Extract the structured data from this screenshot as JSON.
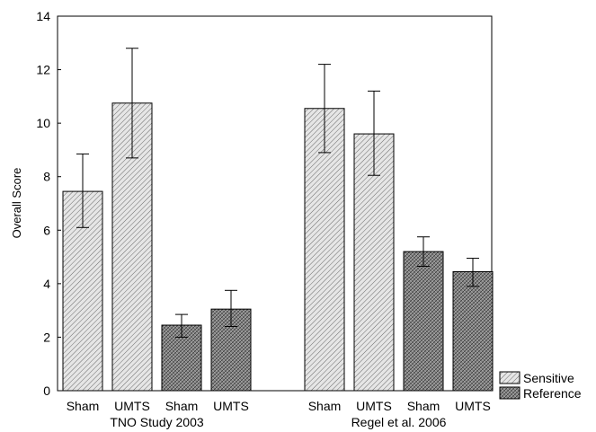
{
  "chart_data": {
    "type": "bar",
    "ylabel": "Overall Score",
    "ylim": [
      0,
      14
    ],
    "yticks": [
      0,
      2,
      4,
      6,
      8,
      10,
      12,
      14
    ],
    "grid": false,
    "legend_position": "bottom-right",
    "groups": [
      {
        "label": "TNO Study 2003",
        "bars": [
          {
            "category": "Sham",
            "series": "Sensitive",
            "value": 7.45,
            "err_low": 6.1,
            "err_high": 8.85
          },
          {
            "category": "UMTS",
            "series": "Sensitive",
            "value": 10.75,
            "err_low": 8.7,
            "err_high": 12.8
          },
          {
            "category": "Sham",
            "series": "Reference",
            "value": 2.45,
            "err_low": 2.0,
            "err_high": 2.85
          },
          {
            "category": "UMTS",
            "series": "Reference",
            "value": 3.05,
            "err_low": 2.4,
            "err_high": 3.75
          }
        ]
      },
      {
        "label": "Regel et al. 2006",
        "bars": [
          {
            "category": "Sham",
            "series": "Sensitive",
            "value": 10.55,
            "err_low": 8.9,
            "err_high": 12.2
          },
          {
            "category": "UMTS",
            "series": "Sensitive",
            "value": 9.6,
            "err_low": 8.05,
            "err_high": 11.2
          },
          {
            "category": "Sham",
            "series": "Reference",
            "value": 5.2,
            "err_low": 4.65,
            "err_high": 5.75
          },
          {
            "category": "UMTS",
            "series": "Reference",
            "value": 4.45,
            "err_low": 3.9,
            "err_high": 4.95
          }
        ]
      }
    ],
    "series": [
      {
        "name": "Sensitive",
        "pattern": "sparse-hatch"
      },
      {
        "name": "Reference",
        "pattern": "dense-hatch"
      }
    ]
  }
}
